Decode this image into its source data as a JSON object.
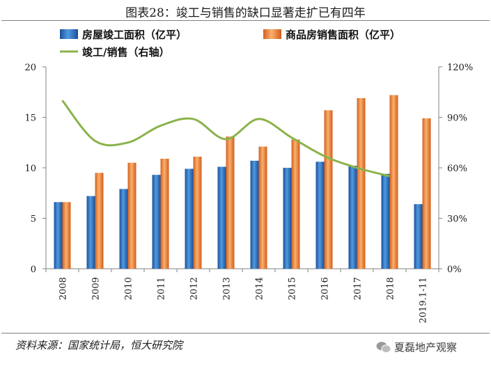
{
  "title": "图表28：竣工与销售的缺口显著走扩已有四年",
  "source": "资料来源：国家统计局，恒大研究院",
  "watermark": "夏磊地产观察",
  "chart_data": {
    "type": "bar",
    "categories": [
      "2008",
      "2009",
      "2010",
      "2011",
      "2012",
      "2013",
      "2014",
      "2015",
      "2016",
      "2017",
      "2018",
      "2019.1-11"
    ],
    "series": [
      {
        "name": "房屋竣工面积（亿平）",
        "type": "bar",
        "axis": "left",
        "values": [
          6.6,
          7.2,
          7.9,
          9.3,
          9.9,
          10.1,
          10.7,
          10.0,
          10.6,
          10.2,
          9.4,
          6.4
        ],
        "color": "#2e6fc0"
      },
      {
        "name": "商品房销售面积（亿平）",
        "type": "bar",
        "axis": "left",
        "values": [
          6.6,
          9.5,
          10.5,
          10.9,
          11.1,
          13.1,
          12.1,
          12.8,
          15.7,
          16.9,
          17.2,
          14.9
        ],
        "color": "#ef7d31"
      },
      {
        "name": "竣工/销售（右轴）",
        "type": "line",
        "axis": "right",
        "values": [
          100,
          76,
          75,
          85,
          89,
          77,
          89,
          78,
          67,
          60,
          55,
          null
        ],
        "color": "#8ab34a"
      }
    ],
    "ylim": [
      0,
      20
    ],
    "yticks": [
      0,
      5,
      10,
      15,
      20
    ],
    "y2lim": [
      0,
      120
    ],
    "y2ticks": [
      "0%",
      "30%",
      "60%",
      "90%",
      "120%"
    ],
    "legend_position": "top",
    "grid": false
  }
}
